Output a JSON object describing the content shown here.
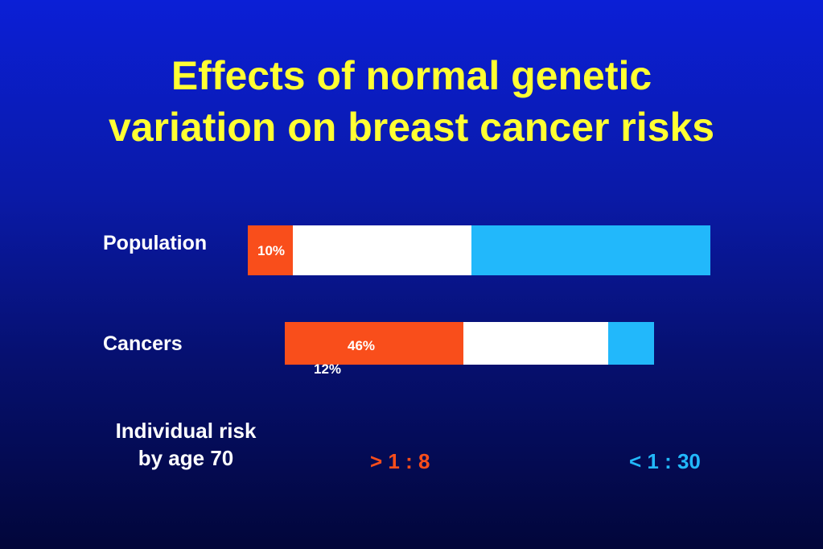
{
  "title": {
    "line1": "Effects of normal genetic",
    "line2": "variation on breast cancer risks"
  },
  "colors": {
    "high_risk": "#f94e1b",
    "middle": "#ffffff",
    "low_risk": "#22b8fb",
    "title": "#ffff33"
  },
  "chart_data": {
    "type": "bar",
    "orientation": "horizontal-stacked",
    "rows": [
      {
        "label": "Population",
        "segments": [
          {
            "label": "10%",
            "color": "#f94e1b"
          },
          {
            "color": "#ffffff"
          },
          {
            "color": "#22b8fb"
          }
        ]
      },
      {
        "label": "Cancers",
        "segments": [
          {
            "label": "46%",
            "color": "#f94e1b"
          },
          {
            "color": "#ffffff"
          },
          {
            "label": "12%",
            "color": "#22b8fb"
          }
        ]
      }
    ],
    "risk": {
      "label_line1": "Individual risk",
      "label_line2": "by age 70",
      "high": "> 1 : 8",
      "low": "< 1 : 30"
    }
  }
}
